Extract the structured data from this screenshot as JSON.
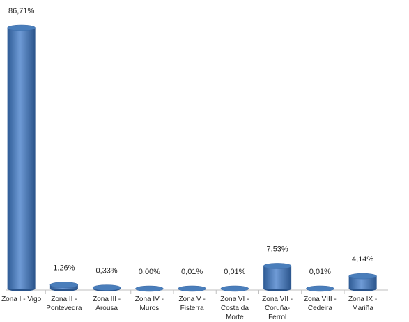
{
  "chart_data": {
    "type": "bar",
    "categories": [
      "Zona I - Vigo",
      "Zona II -\nPontevedra",
      "Zona III -\nArousa",
      "Zona IV -\nMuros",
      "Zona V -\nFisterra",
      "Zona VI -\nCosta da\nMorte",
      "Zona VII -\nCoruña-\nFerrol",
      "Zona VIII -\nCedeira",
      "Zona IX -\nMariña"
    ],
    "values": [
      86.71,
      1.26,
      0.33,
      0,
      0.01,
      0.01,
      7.53,
      0.01,
      4.14
    ],
    "value_labels": [
      "86,71%",
      "1,26%",
      "0,33%",
      "0,00%",
      "0,01%",
      "0,01%",
      "7,53%",
      "0,01%",
      "4,14%"
    ],
    "color": "#4a7ebb"
  }
}
